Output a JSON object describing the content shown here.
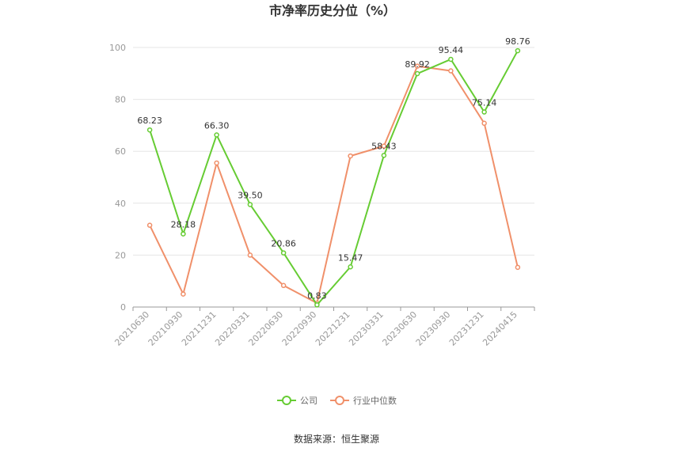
{
  "chart_data": {
    "type": "line",
    "title": "市净率历史分位（%）",
    "xlabel": "",
    "ylabel": "",
    "ylim": [
      0,
      100
    ],
    "yticks": [
      "0",
      "20",
      "40",
      "60",
      "80",
      "100"
    ],
    "grid": true,
    "legend_position": "bottom",
    "categories": [
      "20210630",
      "20210930",
      "20211231",
      "20220331",
      "20220630",
      "20220930",
      "20221231",
      "20230331",
      "20230630",
      "20230930",
      "20231231",
      "20240415"
    ],
    "series": [
      {
        "name": "公司",
        "color": "#66cc33",
        "values": [
          68.23,
          28.18,
          66.3,
          39.5,
          20.86,
          0.83,
          15.47,
          58.43,
          89.92,
          95.44,
          75.14,
          98.76
        ],
        "labels": [
          "68.23",
          "28.18",
          "66.30",
          "39.50",
          "20.86",
          "0.83",
          "15.47",
          "58.43",
          "89.92",
          "95.44",
          "75.14",
          "98.76"
        ]
      },
      {
        "name": "行业中位数",
        "color": "#f0906a",
        "values": [
          31.5,
          5.0,
          55.5,
          20.0,
          8.3,
          1.5,
          58.2,
          62.0,
          92.8,
          91.0,
          70.8,
          15.3
        ]
      }
    ]
  },
  "source_text": "数据来源：恒生聚源"
}
